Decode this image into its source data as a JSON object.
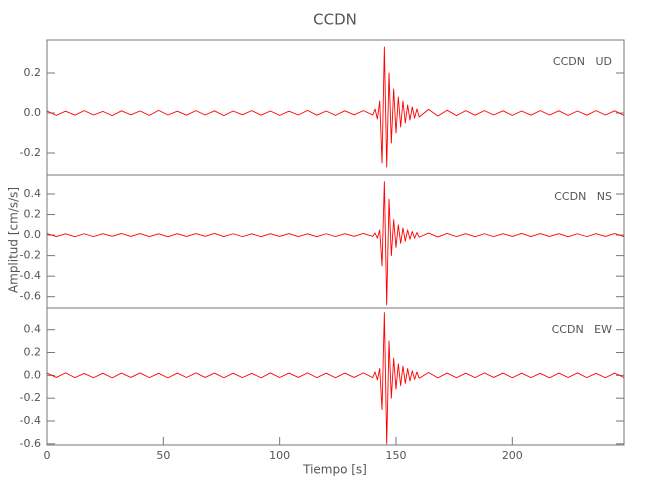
{
  "title": "CCDN",
  "xlabel": "Tiempo [s]",
  "ylabel": "Amplitud [cm/s/s]",
  "chart_data": [
    {
      "type": "line",
      "annotation": "CCDN   UD",
      "color": "#ff0000",
      "xlim": [
        0,
        248
      ],
      "ylim": [
        -0.31,
        0.365
      ],
      "yticks": [
        -0.2,
        {
          "value": 0,
          "label": "0.0"
        },
        0.2
      ],
      "x": [
        0,
        4,
        8,
        12,
        16,
        20,
        24,
        28,
        32,
        36,
        40,
        44,
        48,
        52,
        56,
        60,
        64,
        68,
        72,
        76,
        80,
        84,
        88,
        92,
        96,
        100,
        104,
        108,
        112,
        116,
        120,
        124,
        128,
        132,
        136,
        140,
        141,
        142,
        143,
        144,
        145,
        146,
        147,
        148,
        149,
        150,
        151,
        152,
        153,
        154,
        155,
        156,
        157,
        158,
        159,
        160,
        164,
        168,
        172,
        176,
        180,
        184,
        188,
        192,
        196,
        200,
        204,
        208,
        212,
        216,
        220,
        224,
        228,
        232,
        236,
        240,
        244,
        248
      ],
      "values": [
        0.01,
        -0.012,
        0.009,
        -0.011,
        0.012,
        -0.01,
        0.008,
        -0.013,
        0.011,
        -0.009,
        0.01,
        -0.012,
        0.013,
        -0.01,
        0.009,
        -0.011,
        0.012,
        -0.01,
        0.011,
        -0.013,
        0.01,
        -0.009,
        0.012,
        -0.011,
        0.01,
        -0.012,
        0.009,
        -0.01,
        0.013,
        -0.011,
        0.01,
        -0.012,
        0.011,
        -0.009,
        0.012,
        -0.01,
        0.02,
        -0.03,
        0.06,
        -0.25,
        0.33,
        -0.27,
        0.2,
        -0.15,
        0.12,
        -0.1,
        0.08,
        -0.07,
        0.06,
        -0.05,
        0.04,
        -0.035,
        0.03,
        -0.025,
        0.02,
        -0.02,
        0.018,
        -0.015,
        0.014,
        -0.013,
        0.012,
        -0.011,
        0.012,
        -0.01,
        0.011,
        -0.012,
        0.01,
        -0.011,
        0.012,
        -0.01,
        0.011,
        -0.012,
        0.01,
        -0.011,
        0.012,
        -0.01,
        0.011,
        -0.012
      ]
    },
    {
      "type": "line",
      "annotation": "CCDN   NS",
      "color": "#ff0000",
      "xlim": [
        0,
        248
      ],
      "ylim": [
        -0.71,
        0.585
      ],
      "yticks": [
        -0.6,
        -0.4,
        -0.2,
        {
          "value": 0,
          "label": "0.0"
        },
        0.2,
        0.4
      ],
      "x": [
        0,
        4,
        8,
        12,
        16,
        20,
        24,
        28,
        32,
        36,
        40,
        44,
        48,
        52,
        56,
        60,
        64,
        68,
        72,
        76,
        80,
        84,
        88,
        92,
        96,
        100,
        104,
        108,
        112,
        116,
        120,
        124,
        128,
        132,
        136,
        140,
        141,
        142,
        143,
        144,
        145,
        146,
        147,
        148,
        149,
        150,
        151,
        152,
        153,
        154,
        155,
        156,
        157,
        158,
        159,
        160,
        164,
        168,
        172,
        176,
        180,
        184,
        188,
        192,
        196,
        200,
        204,
        208,
        212,
        216,
        220,
        224,
        228,
        232,
        236,
        240,
        244,
        248
      ],
      "values": [
        0.015,
        -0.014,
        0.012,
        -0.016,
        0.013,
        -0.015,
        0.014,
        -0.012,
        0.016,
        -0.013,
        0.015,
        -0.014,
        0.012,
        -0.016,
        0.014,
        -0.013,
        0.015,
        -0.012,
        0.016,
        -0.014,
        0.013,
        -0.015,
        0.012,
        -0.016,
        0.014,
        -0.013,
        0.015,
        -0.014,
        0.012,
        -0.016,
        0.013,
        -0.015,
        0.014,
        -0.012,
        0.016,
        -0.013,
        0.02,
        -0.03,
        0.05,
        -0.3,
        0.52,
        -0.68,
        0.35,
        -0.2,
        0.15,
        -0.12,
        0.1,
        -0.08,
        0.07,
        -0.06,
        0.05,
        -0.04,
        0.035,
        -0.03,
        0.025,
        -0.02,
        0.02,
        -0.018,
        0.016,
        -0.015,
        0.014,
        -0.016,
        0.013,
        -0.015,
        0.014,
        -0.013,
        0.016,
        -0.014,
        0.015,
        -0.013,
        0.014,
        -0.016,
        0.013,
        -0.015,
        0.014,
        -0.013,
        0.015,
        -0.014
      ]
    },
    {
      "type": "line",
      "annotation": "CCDN   EW",
      "color": "#ff0000",
      "xlim": [
        0,
        248
      ],
      "ylim": [
        -0.61,
        0.59
      ],
      "yticks": [
        -0.6,
        -0.4,
        -0.2,
        {
          "value": 0,
          "label": "0.0"
        },
        0.2,
        0.4
      ],
      "xticks": [
        0,
        50,
        100,
        150,
        200
      ],
      "xlabel_on": true,
      "x": [
        0,
        4,
        8,
        12,
        16,
        20,
        24,
        28,
        32,
        36,
        40,
        44,
        48,
        52,
        56,
        60,
        64,
        68,
        72,
        76,
        80,
        84,
        88,
        92,
        96,
        100,
        104,
        108,
        112,
        116,
        120,
        124,
        128,
        132,
        136,
        140,
        141,
        142,
        143,
        144,
        145,
        146,
        147,
        148,
        149,
        150,
        151,
        152,
        153,
        154,
        155,
        156,
        157,
        158,
        159,
        160,
        164,
        168,
        172,
        176,
        180,
        184,
        188,
        192,
        196,
        200,
        204,
        208,
        212,
        216,
        220,
        224,
        228,
        232,
        236,
        240,
        244,
        248
      ],
      "values": [
        0.02,
        -0.018,
        0.022,
        -0.02,
        0.017,
        -0.021,
        0.019,
        -0.022,
        0.02,
        -0.018,
        0.021,
        -0.02,
        0.018,
        -0.022,
        0.02,
        -0.019,
        0.022,
        -0.018,
        0.02,
        -0.021,
        0.019,
        -0.02,
        0.018,
        -0.022,
        0.021,
        -0.019,
        0.02,
        -0.018,
        0.022,
        -0.02,
        0.019,
        -0.021,
        0.02,
        -0.018,
        0.022,
        -0.02,
        0.03,
        -0.04,
        0.06,
        -0.3,
        0.55,
        -0.6,
        0.3,
        -0.2,
        0.15,
        -0.12,
        0.1,
        -0.09,
        0.08,
        -0.07,
        0.06,
        -0.05,
        0.04,
        -0.035,
        0.03,
        -0.025,
        0.025,
        -0.022,
        0.02,
        -0.021,
        0.019,
        -0.02,
        0.022,
        -0.018,
        0.02,
        -0.021,
        0.019,
        -0.02,
        0.018,
        -0.022,
        0.02,
        -0.019,
        0.021,
        -0.02,
        0.018,
        -0.021,
        0.02,
        -0.019
      ]
    }
  ]
}
